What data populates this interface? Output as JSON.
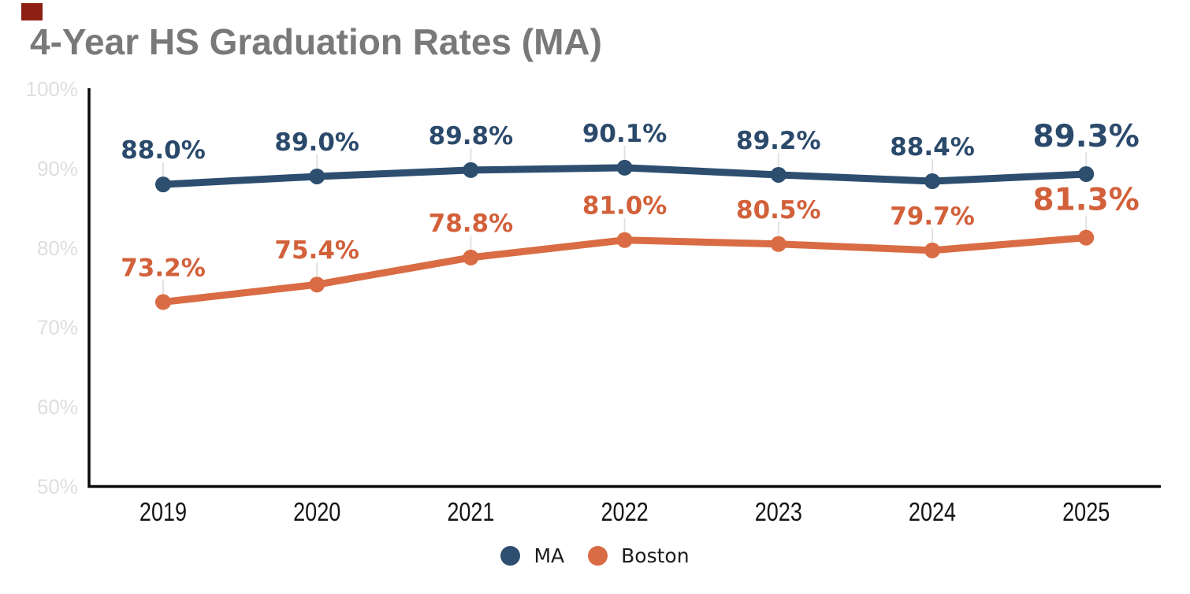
{
  "page": {
    "background": "#ffffff"
  },
  "header": {
    "badge": {
      "color": "#8E1F15"
    },
    "title": "4-Year HS Graduation Rates (MA)",
    "title_color": "#797979"
  },
  "chart_data": {
    "type": "line",
    "title": "4-Year HS Graduation Rates (MA)",
    "categories": [
      "2019",
      "2020",
      "2021",
      "2022",
      "2023",
      "2024",
      "2025"
    ],
    "series": [
      {
        "name": "MA",
        "color": "#2D4E6F",
        "label_color": "#2B4A6B",
        "values": [
          88.0,
          89.0,
          89.8,
          90.1,
          89.2,
          88.4,
          89.3
        ],
        "point_labels": [
          "88.0%",
          "89.0%",
          "89.8%",
          "90.1%",
          "89.2%",
          "88.4%",
          "89.3%"
        ]
      },
      {
        "name": "Boston",
        "color": "#D96C44",
        "label_color": "#D2603A",
        "values": [
          73.2,
          75.4,
          78.8,
          81.0,
          80.5,
          79.7,
          81.3
        ],
        "point_labels": [
          "73.2%",
          "75.4%",
          "78.8%",
          "81.0%",
          "80.5%",
          "79.7%",
          "81.3%"
        ]
      }
    ],
    "xlabel": "",
    "ylabel": "",
    "ylim": [
      50,
      100
    ],
    "y_ticks": [
      {
        "value": 100,
        "label": "100%"
      },
      {
        "value": 90,
        "label": "90%"
      },
      {
        "value": 80,
        "label": "80%"
      },
      {
        "value": 70,
        "label": "70%"
      },
      {
        "value": 60,
        "label": "60%"
      },
      {
        "value": 50,
        "label": "50%"
      }
    ],
    "grid": false,
    "legend_position": "bottom",
    "emphasize_last_label": true,
    "axis_color": "#0a0a0a",
    "y_tick_label_color": "#DEDEDE",
    "x_tick_label_color": "#141414",
    "leader_line_color": "#E2E2E2"
  },
  "legend": {
    "items": [
      "MA",
      "Boston"
    ]
  }
}
